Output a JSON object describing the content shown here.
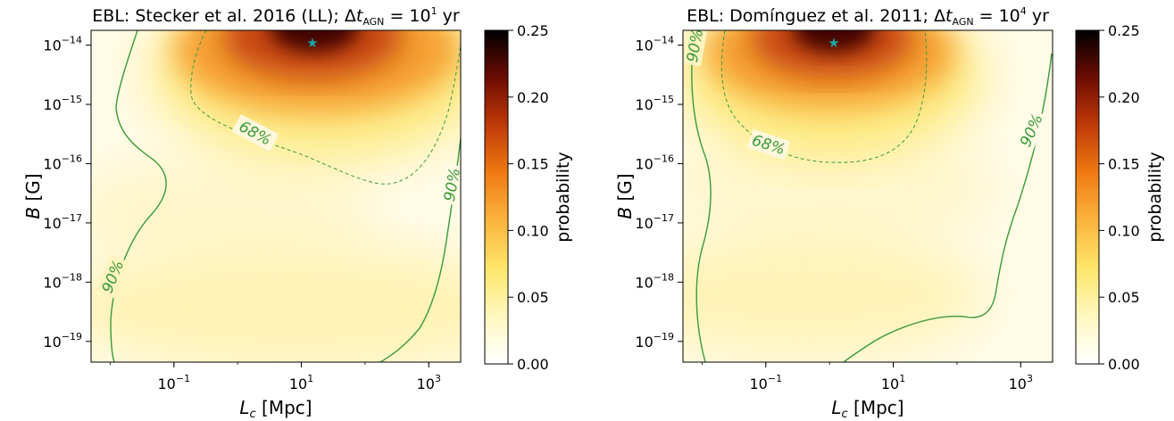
{
  "colors": {
    "contour": "#3a9a3a",
    "star": "#1aa7a7",
    "cmap": [
      "#ffffff",
      "#fff8c0",
      "#fde66a",
      "#fbb43c",
      "#f07b12",
      "#c03a08",
      "#6e0c02",
      "#000000"
    ]
  },
  "chart_data": [
    {
      "type": "heatmap",
      "title": "EBL: Stecker et al. 2016 (LL); Δt_AGN = 10^1 yr",
      "title_parts": {
        "prefix": "EBL: Stecker et al. 2016 (LL); Δ",
        "t": "t",
        "sub": "AGN",
        "eq": " = 10",
        "exp": "1",
        "unit": " yr"
      },
      "xlabel": "L_c [Mpc]",
      "xlabel_parts": {
        "sym": "L",
        "sub": "c",
        "unit": " [Mpc]"
      },
      "ylabel": "B [G]",
      "ylabel_parts": {
        "sym": "B",
        "unit": " [G]"
      },
      "xscale": "log",
      "yscale": "log",
      "xlim_log10": [
        -2.3,
        3.5
      ],
      "ylim_log10": [
        -19.35,
        -13.75
      ],
      "x_ticks": [
        {
          "base": "10",
          "exp": "−1",
          "log": -1
        },
        {
          "base": "10",
          "exp": "1",
          "log": 1
        },
        {
          "base": "10",
          "exp": "3",
          "log": 3
        }
      ],
      "y_ticks": [
        {
          "base": "10",
          "exp": "−14",
          "log": -14
        },
        {
          "base": "10",
          "exp": "−15",
          "log": -15
        },
        {
          "base": "10",
          "exp": "−16",
          "log": -16
        },
        {
          "base": "10",
          "exp": "−17",
          "log": -17
        },
        {
          "base": "10",
          "exp": "−18",
          "log": -18
        },
        {
          "base": "10",
          "exp": "−19",
          "log": -19
        }
      ],
      "best_fit": {
        "log10_Lc": 1.15,
        "log10_B": -13.95
      },
      "peak_probability": 0.25,
      "contours": [
        {
          "label": "68%",
          "style": "dashed"
        },
        {
          "label": "90%",
          "style": "solid"
        },
        {
          "label": "90%",
          "style": "solid"
        }
      ],
      "colorbar": {
        "label": "probability",
        "range": [
          0.0,
          0.25
        ],
        "ticks": [
          "0.00",
          "0.05",
          "0.10",
          "0.15",
          "0.20",
          "0.25"
        ]
      }
    },
    {
      "type": "heatmap",
      "title": "EBL: Domínguez et al. 2011; Δt_AGN = 10^4 yr",
      "title_parts": {
        "prefix": "EBL: Domínguez et al. 2011; Δ",
        "t": "t",
        "sub": "AGN",
        "eq": " = 10",
        "exp": "4",
        "unit": " yr"
      },
      "xlabel": "L_c [Mpc]",
      "xlabel_parts": {
        "sym": "L",
        "sub": "c",
        "unit": " [Mpc]"
      },
      "ylabel": "B [G]",
      "ylabel_parts": {
        "sym": "B",
        "unit": " [G]"
      },
      "xscale": "log",
      "yscale": "log",
      "xlim_log10": [
        -2.3,
        3.5
      ],
      "ylim_log10": [
        -19.35,
        -13.75
      ],
      "x_ticks": [
        {
          "base": "10",
          "exp": "−1",
          "log": -1
        },
        {
          "base": "10",
          "exp": "1",
          "log": 1
        },
        {
          "base": "10",
          "exp": "3",
          "log": 3
        }
      ],
      "y_ticks": [
        {
          "base": "10",
          "exp": "−14",
          "log": -14
        },
        {
          "base": "10",
          "exp": "−15",
          "log": -15
        },
        {
          "base": "10",
          "exp": "−16",
          "log": -16
        },
        {
          "base": "10",
          "exp": "−17",
          "log": -17
        },
        {
          "base": "10",
          "exp": "−18",
          "log": -18
        },
        {
          "base": "10",
          "exp": "−19",
          "log": -19
        }
      ],
      "best_fit": {
        "log10_Lc": 0.0,
        "log10_B": -13.95
      },
      "peak_probability": 0.25,
      "contours": [
        {
          "label": "68%",
          "style": "dashed"
        },
        {
          "label": "90%",
          "style": "solid"
        },
        {
          "label": "90%",
          "style": "solid"
        }
      ],
      "colorbar": {
        "label": "probability",
        "range": [
          0.0,
          0.25
        ],
        "ticks": [
          "0.00",
          "0.05",
          "0.10",
          "0.15",
          "0.20",
          "0.25"
        ]
      }
    }
  ]
}
